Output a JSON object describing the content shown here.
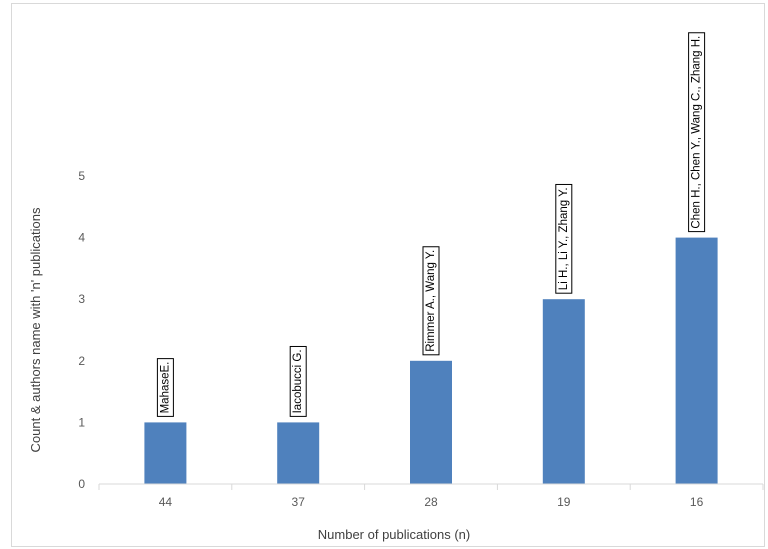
{
  "chart_data": {
    "type": "bar",
    "categories": [
      "44",
      "37",
      "28",
      "19",
      "16"
    ],
    "values": [
      1,
      1,
      2,
      3,
      4
    ],
    "data_labels": [
      "MahaseE.",
      "Iacobucci G.",
      "Rimmer A., Wang Y.",
      "Li H., Li Y., Zhang Y.",
      "Chen H., Chen Y., Wang C., Zhang H."
    ],
    "title": "",
    "xlabel": "Number of publications (n)",
    "ylabel": "Count & authors name with 'n' publications",
    "ylim": [
      0,
      5
    ],
    "yticks": [
      0,
      1,
      2,
      3,
      4,
      5
    ],
    "grid": false,
    "legend": "none",
    "bar_color": "#4f81bd",
    "axis_color": "#d9d9d9"
  }
}
